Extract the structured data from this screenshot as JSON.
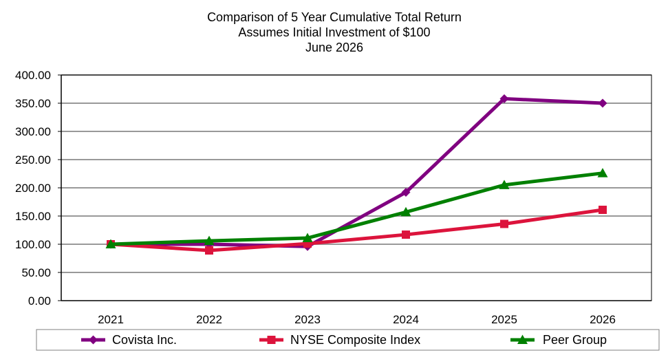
{
  "chart_data": {
    "type": "line",
    "title_lines": [
      "Comparison of 5 Year Cumulative Total Return",
      "Assumes Initial Investment of $100",
      "June 2026"
    ],
    "xlabel": "",
    "ylabel": "",
    "categories": [
      "2021",
      "2022",
      "2023",
      "2024",
      "2025",
      "2026"
    ],
    "y_ticks": [
      "0.00",
      "50.00",
      "100.00",
      "150.00",
      "200.00",
      "250.00",
      "300.00",
      "350.00",
      "400.00"
    ],
    "ylim": [
      0,
      400
    ],
    "grid": true,
    "legend_position": "bottom",
    "series": [
      {
        "name": "Covista Inc.",
        "color": "#800080",
        "marker": "diamond",
        "values": [
          100,
          100,
          96,
          192,
          358,
          350
        ]
      },
      {
        "name": "NYSE Composite Index",
        "color": "#dc143c",
        "marker": "square",
        "values": [
          100,
          89,
          101,
          117,
          136,
          161
        ]
      },
      {
        "name": "Peer Group",
        "color": "#008000",
        "marker": "triangle",
        "values": [
          100,
          106,
          111,
          157,
          205,
          226
        ]
      }
    ]
  }
}
